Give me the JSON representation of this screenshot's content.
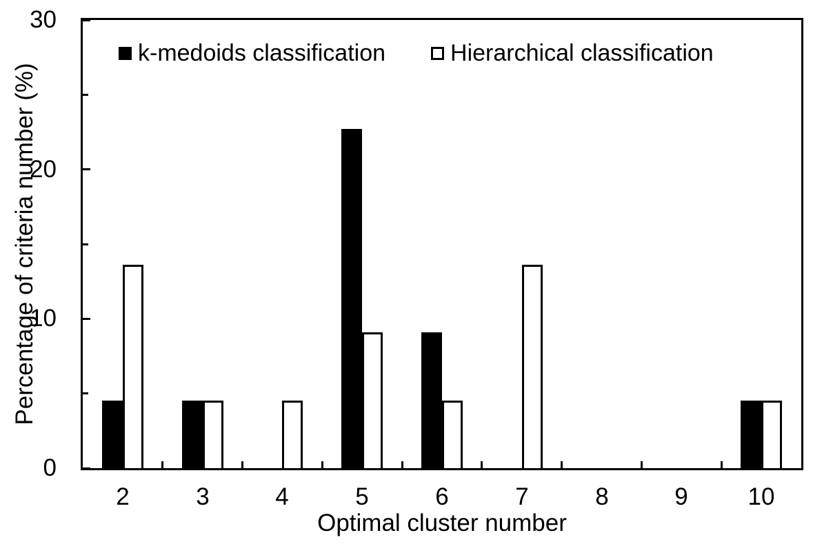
{
  "figure": {
    "background": "#ffffff",
    "foreground": "#000000"
  },
  "chart_data": {
    "type": "bar",
    "title": "",
    "categories": [
      "2",
      "3",
      "4",
      "5",
      "6",
      "7",
      "8",
      "9",
      "10"
    ],
    "series": [
      {
        "name": "k-medoids classification",
        "fill": "#000000",
        "outline": "#000000",
        "values": [
          4.5,
          4.5,
          0,
          22.7,
          9.1,
          0,
          0,
          0,
          4.5
        ]
      },
      {
        "name": "Hierarchical classification",
        "fill": "#ffffff",
        "outline": "#000000",
        "values": [
          13.6,
          4.5,
          4.5,
          9.1,
          4.5,
          13.6,
          0,
          0,
          4.5
        ]
      }
    ],
    "xlabel": "Optimal cluster number",
    "ylabel": "Percentage of criteria number (%)",
    "ylim": [
      0,
      30
    ],
    "y_major_ticks": [
      0,
      10,
      20,
      30
    ],
    "y_minor_ticks": [
      5,
      15,
      25
    ],
    "grid": "off",
    "legend_position": "top-inside",
    "tick_direction": "inside"
  }
}
